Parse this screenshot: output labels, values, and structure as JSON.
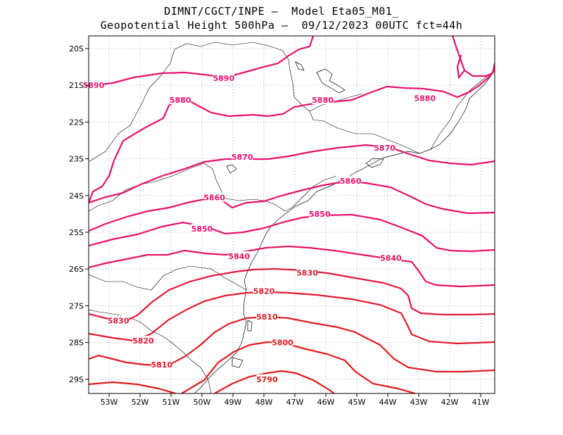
{
  "header": {
    "line1": "DIMNT/CGCT/INPE –  Model Eta05_M01_",
    "line2": "Geopotential Height 500hPa –  09/12/2023 00UTC fct=44h"
  },
  "map": {
    "lat_labels": [
      "20S",
      "21S",
      "22S",
      "23S",
      "24S",
      "25S",
      "26S",
      "27S",
      "28S",
      "29S"
    ],
    "lon_labels": [
      "53W",
      "52W",
      "51W",
      "50W",
      "49W",
      "48W",
      "47W",
      "46W",
      "45W",
      "44W",
      "43W",
      "42W",
      "41W"
    ],
    "grid": "dotted",
    "contour_colors": {
      "5890": "#e8106e",
      "5880": "#e8106e",
      "5870": "#e8106e",
      "5860": "#e8106e",
      "5850": "#e8106e",
      "5840": "#e61456",
      "5830": "#e4183e",
      "5820": "#e21a2e",
      "5810": "#e01a22",
      "5800": "#e01a1a",
      "5790": "#e01a1a"
    },
    "contour_labels": [
      {
        "text": "5890",
        "lon": -53.5,
        "lat": -21.0
      },
      {
        "text": "5890",
        "lon": -49.3,
        "lat": -20.8
      },
      {
        "text": "5880",
        "lon": -50.7,
        "lat": -21.4
      },
      {
        "text": "5880",
        "lon": -46.1,
        "lat": -21.4
      },
      {
        "text": "5880",
        "lon": -42.8,
        "lat": -21.35
      },
      {
        "text": "5870",
        "lon": -48.7,
        "lat": -22.95
      },
      {
        "text": "5870",
        "lon": -44.1,
        "lat": -22.7
      },
      {
        "text": "5860",
        "lon": -49.6,
        "lat": -24.05
      },
      {
        "text": "5860",
        "lon": -45.2,
        "lat": -23.6
      },
      {
        "text": "5850",
        "lon": -50.0,
        "lat": -24.9
      },
      {
        "text": "5850",
        "lon": -46.2,
        "lat": -24.5
      },
      {
        "text": "5840",
        "lon": -48.8,
        "lat": -25.65
      },
      {
        "text": "5840",
        "lon": -43.9,
        "lat": -25.7
      },
      {
        "text": "5830",
        "lon": -46.6,
        "lat": -26.1
      },
      {
        "text": "5830",
        "lon": -52.7,
        "lat": -27.4
      },
      {
        "text": "5820",
        "lon": -48.0,
        "lat": -26.6
      },
      {
        "text": "5820",
        "lon": -51.9,
        "lat": -27.95
      },
      {
        "text": "5810",
        "lon": -47.9,
        "lat": -27.3
      },
      {
        "text": "5810",
        "lon": -51.3,
        "lat": -28.6
      },
      {
        "text": "5800",
        "lon": -47.4,
        "lat": -28.0
      },
      {
        "text": "5790",
        "lon": -47.9,
        "lat": -29.0
      }
    ]
  }
}
